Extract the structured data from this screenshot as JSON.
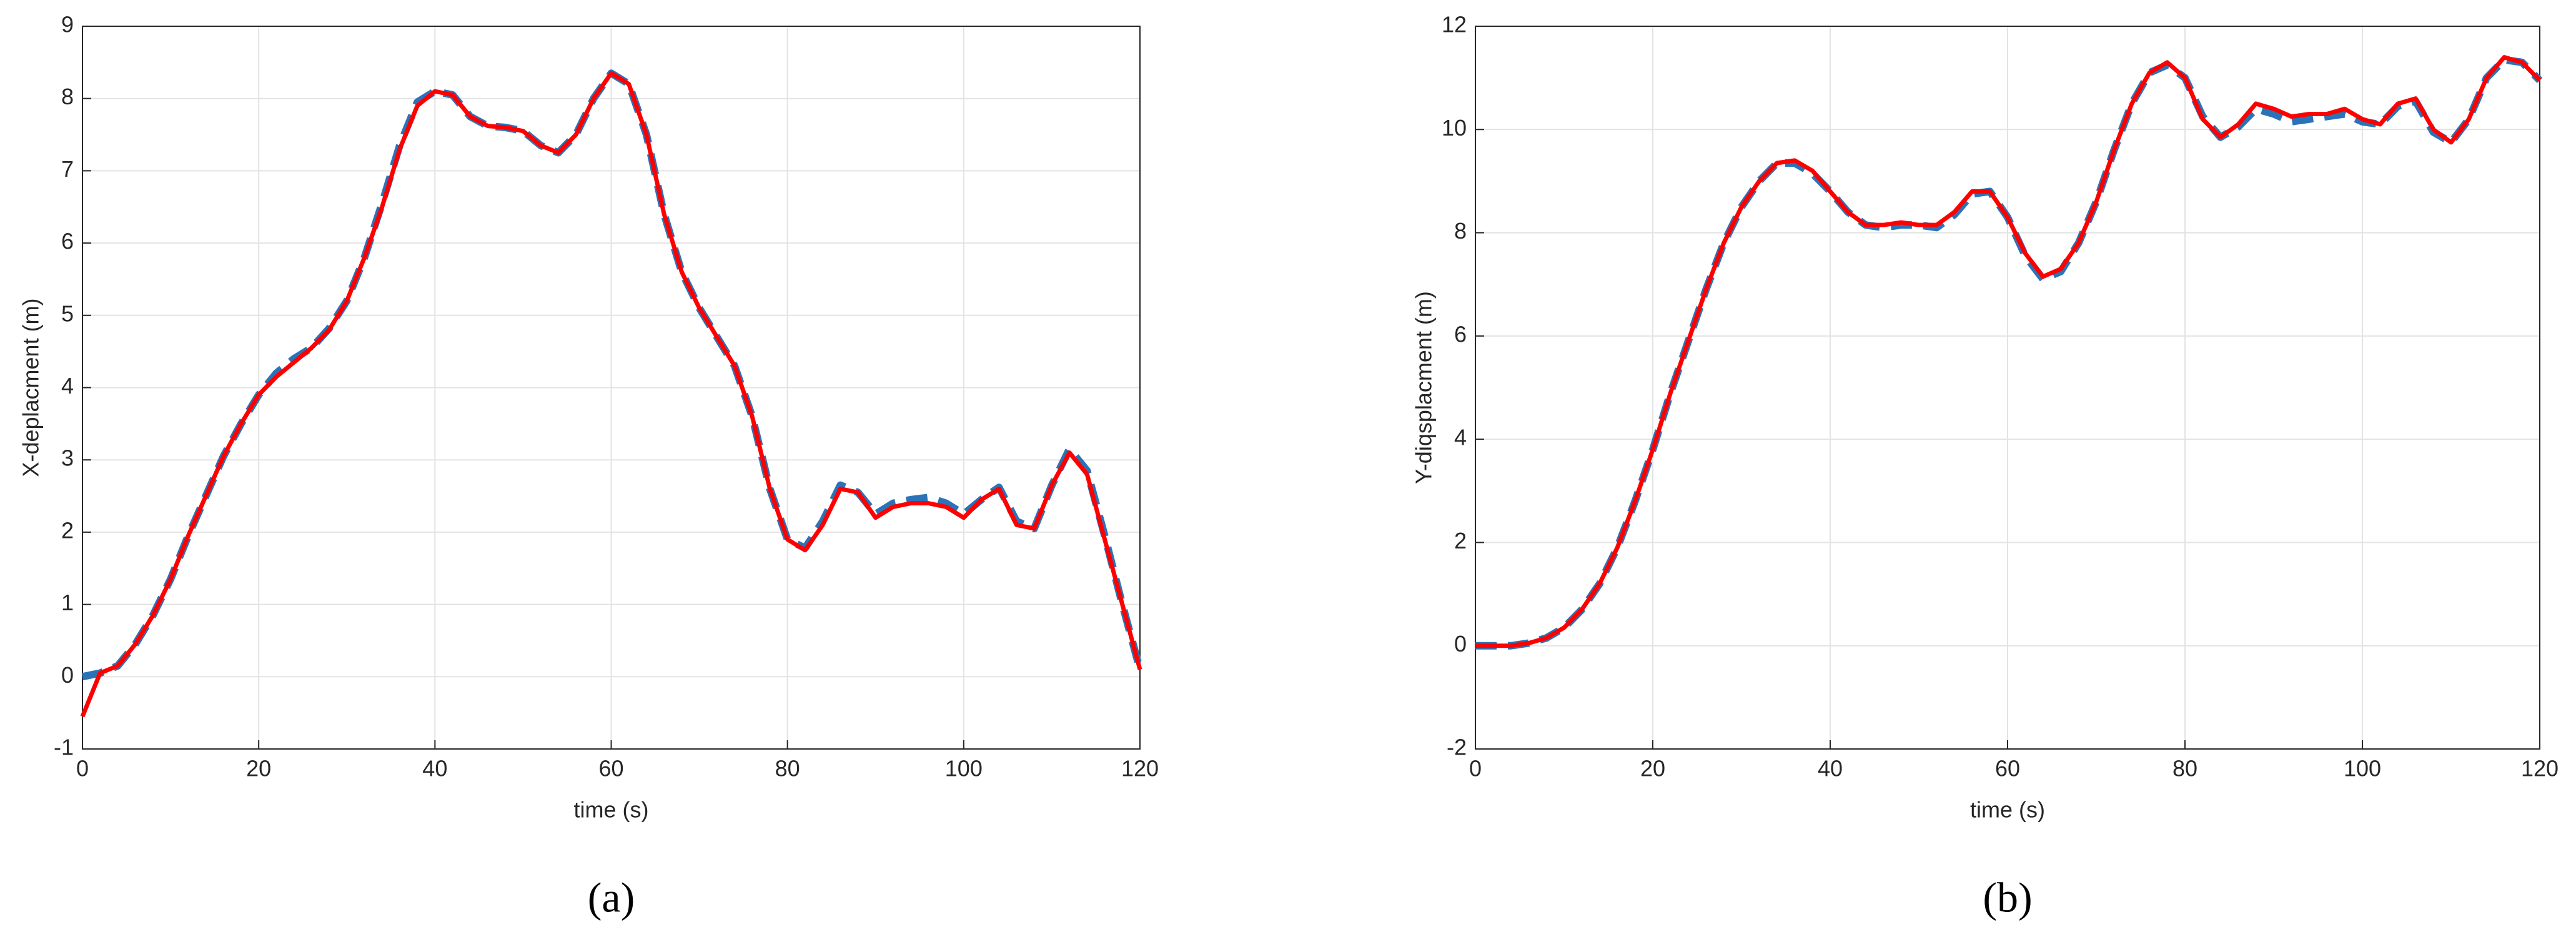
{
  "chart_data": [
    {
      "type": "line",
      "caption": "(a)",
      "x_label": "time (s)",
      "y_label": "X-deplacment (m)",
      "xlim": [
        0,
        120
      ],
      "xticks": [
        0,
        20,
        40,
        60,
        80,
        100,
        120
      ],
      "ylim": [
        -1,
        9
      ],
      "yticks": [
        -1,
        0,
        1,
        2,
        3,
        4,
        5,
        6,
        7,
        8,
        9
      ],
      "grid": true,
      "x": [
        0,
        2,
        4,
        6,
        8,
        10,
        12,
        14,
        16,
        18,
        20,
        22,
        24,
        26,
        28,
        30,
        32,
        34,
        36,
        38,
        40,
        42,
        44,
        46,
        48,
        50,
        52,
        54,
        56,
        58,
        60,
        62,
        64,
        66,
        68,
        70,
        72,
        74,
        76,
        78,
        80,
        82,
        84,
        86,
        88,
        90,
        92,
        94,
        96,
        98,
        100,
        102,
        104,
        106,
        108,
        110,
        112,
        114,
        116,
        118,
        120
      ],
      "series": [
        {
          "color": "#2b73b8",
          "dash": true,
          "values": [
            0,
            0.05,
            0.15,
            0.45,
            0.85,
            1.35,
            1.95,
            2.5,
            3.05,
            3.5,
            3.9,
            4.2,
            4.4,
            4.55,
            4.82,
            5.2,
            5.8,
            6.55,
            7.35,
            7.95,
            8.1,
            8.05,
            7.75,
            7.62,
            7.6,
            7.55,
            7.35,
            7.25,
            7.5,
            8.0,
            8.35,
            8.2,
            7.5,
            6.4,
            5.6,
            5.1,
            4.7,
            4.3,
            3.6,
            2.6,
            1.9,
            1.78,
            2.15,
            2.65,
            2.55,
            2.25,
            2.4,
            2.45,
            2.48,
            2.4,
            2.25,
            2.45,
            2.62,
            2.15,
            2.05,
            2.65,
            3.15,
            2.85,
            1.95,
            1.0,
            0.1
          ]
        },
        {
          "color": "#ff0000",
          "dash": false,
          "values": [
            -0.55,
            0.05,
            0.15,
            0.45,
            0.85,
            1.35,
            1.95,
            2.5,
            3.05,
            3.5,
            3.9,
            4.15,
            4.35,
            4.55,
            4.8,
            5.2,
            5.8,
            6.5,
            7.3,
            7.9,
            8.1,
            8.05,
            7.75,
            7.62,
            7.6,
            7.55,
            7.35,
            7.25,
            7.5,
            8.0,
            8.35,
            8.2,
            7.5,
            6.4,
            5.6,
            5.1,
            4.7,
            4.3,
            3.6,
            2.6,
            1.9,
            1.75,
            2.1,
            2.6,
            2.55,
            2.2,
            2.35,
            2.4,
            2.4,
            2.35,
            2.2,
            2.45,
            2.6,
            2.1,
            2.05,
            2.65,
            3.1,
            2.8,
            1.9,
            1.0,
            0.1
          ]
        }
      ]
    },
    {
      "type": "line",
      "caption": "(b)",
      "x_label": "time (s)",
      "y_label": "Y-diqsplacment (m)",
      "xlim": [
        0,
        120
      ],
      "xticks": [
        0,
        20,
        40,
        60,
        80,
        100,
        120
      ],
      "ylim": [
        -2,
        12
      ],
      "yticks": [
        -2,
        0,
        2,
        4,
        6,
        8,
        10,
        12
      ],
      "grid": true,
      "x": [
        0,
        2,
        4,
        6,
        8,
        10,
        12,
        14,
        16,
        18,
        20,
        22,
        24,
        26,
        28,
        30,
        32,
        34,
        36,
        38,
        40,
        42,
        44,
        46,
        48,
        50,
        52,
        54,
        56,
        58,
        60,
        62,
        64,
        66,
        68,
        70,
        72,
        74,
        76,
        78,
        80,
        82,
        84,
        86,
        88,
        90,
        92,
        94,
        96,
        98,
        100,
        102,
        104,
        106,
        108,
        110,
        112,
        114,
        116,
        118,
        120
      ],
      "series": [
        {
          "color": "#2b73b8",
          "dash": true,
          "values": [
            0,
            0,
            0,
            0.05,
            0.15,
            0.35,
            0.7,
            1.2,
            1.9,
            2.8,
            3.8,
            4.9,
            5.9,
            6.9,
            7.8,
            8.5,
            9.0,
            9.35,
            9.35,
            9.15,
            8.8,
            8.4,
            8.15,
            8.1,
            8.15,
            8.15,
            8.1,
            8.35,
            8.75,
            8.8,
            8.3,
            7.55,
            7.1,
            7.25,
            7.8,
            8.6,
            9.6,
            10.5,
            11.1,
            11.25,
            11.0,
            10.25,
            9.85,
            10.05,
            10.4,
            10.3,
            10.15,
            10.2,
            10.25,
            10.3,
            10.15,
            10.1,
            10.45,
            10.55,
            9.95,
            9.75,
            10.2,
            11.0,
            11.35,
            11.3,
            10.95
          ]
        },
        {
          "color": "#ff0000",
          "dash": false,
          "values": [
            0,
            0,
            0,
            0.05,
            0.15,
            0.35,
            0.7,
            1.2,
            1.9,
            2.8,
            3.8,
            4.9,
            5.9,
            6.9,
            7.8,
            8.5,
            9.0,
            9.35,
            9.4,
            9.2,
            8.8,
            8.4,
            8.15,
            8.15,
            8.2,
            8.15,
            8.15,
            8.4,
            8.8,
            8.8,
            8.3,
            7.6,
            7.15,
            7.3,
            7.8,
            8.6,
            9.6,
            10.5,
            11.1,
            11.3,
            11.0,
            10.2,
            9.85,
            10.1,
            10.5,
            10.4,
            10.25,
            10.3,
            10.3,
            10.4,
            10.2,
            10.1,
            10.5,
            10.6,
            10.0,
            9.75,
            10.2,
            11.0,
            11.4,
            11.3,
            10.95
          ]
        }
      ]
    }
  ]
}
